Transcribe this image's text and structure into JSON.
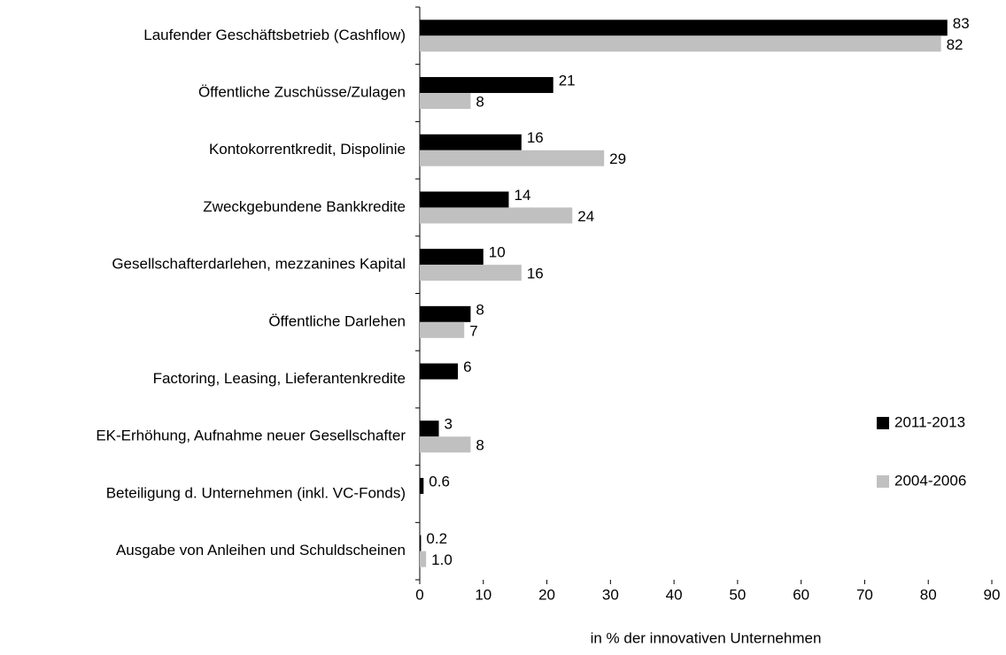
{
  "chart_data": {
    "type": "hbar",
    "x_label": "in % der innovativen Unternehmen",
    "categories": [
      "Laufender Geschäftsbetrieb (Cashflow)",
      "Öffentliche Zuschüsse/Zulagen",
      "Kontokorrentkredit, Dispolinie",
      "Zweckgebundene Bankkredite",
      "Gesellschafterdarlehen, mezzanines Kapital",
      "Öffentliche Darlehen",
      "Factoring, Leasing, Lieferantenkredite",
      "EK-Erhöhung, Aufnahme neuer Gesellschafter",
      "Beteiligung d. Unternehmen (inkl. VC-Fonds)",
      "Ausgabe von Anleihen und Schuldscheinen"
    ],
    "series": [
      {
        "name": "2011-2013",
        "color": "#000000",
        "values": [
          83,
          21,
          16,
          14,
          10,
          8,
          6,
          3,
          0.6,
          0.2
        ]
      },
      {
        "name": "2004-2006",
        "color": "#c0c0c0",
        "values": [
          82,
          8,
          29,
          24,
          16,
          7,
          null,
          8,
          null,
          1
        ],
        "value_labels": [
          "82",
          "8",
          "29",
          "24",
          "16",
          "7",
          null,
          "8",
          null,
          "1.0"
        ]
      }
    ],
    "xlim": [
      0,
      90
    ],
    "xticks": [
      0,
      10,
      20,
      30,
      40,
      50,
      60,
      70,
      80,
      90
    ],
    "legend": "right"
  }
}
